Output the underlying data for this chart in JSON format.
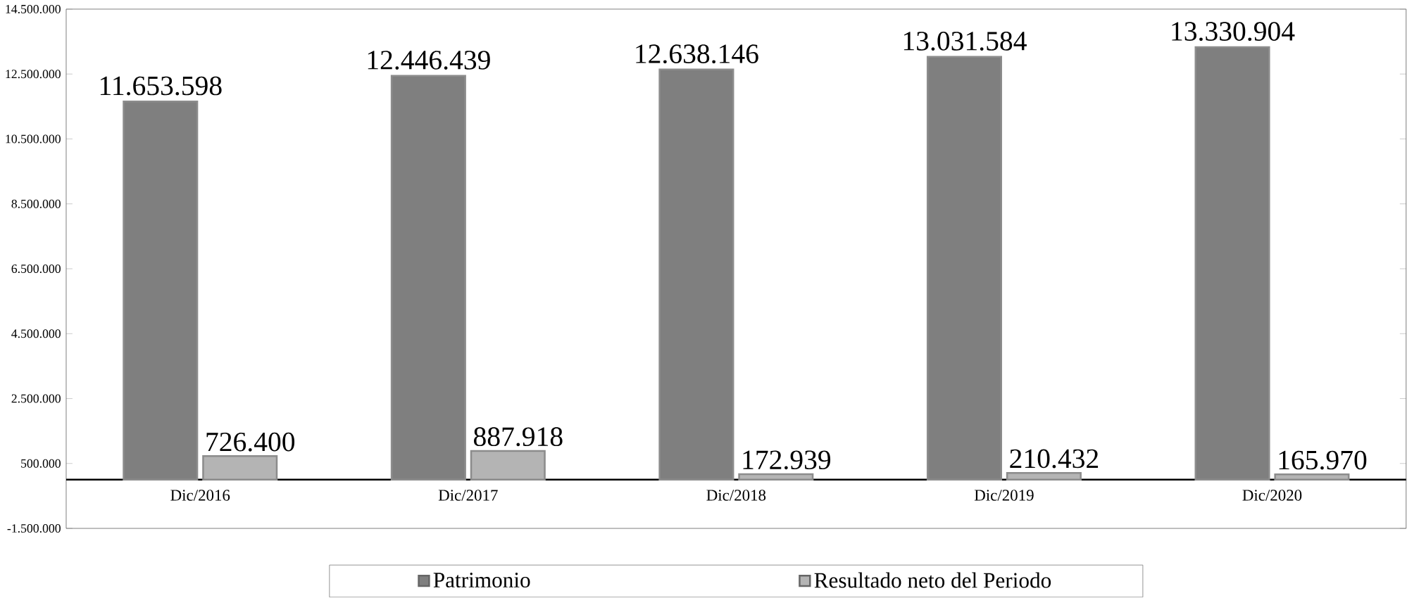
{
  "chart_data": {
    "type": "bar",
    "categories": [
      "Dic/2016",
      "Dic/2017",
      "Dic/2018",
      "Dic/2019",
      "Dic/2020"
    ],
    "series": [
      {
        "name": "Patrimonio",
        "color": "#7f7f7f",
        "values": [
          11653598,
          12446439,
          12638146,
          13031584,
          13330904
        ],
        "value_labels": [
          "11.653.598",
          "12.446.439",
          "12.638.146",
          "13.031.584",
          "13.330.904"
        ]
      },
      {
        "name": "Resultado neto del Periodo",
        "color": "#b4b4b4",
        "values": [
          726400,
          887918,
          172939,
          210432,
          165970
        ],
        "value_labels": [
          "726.400",
          "887.918",
          "172.939",
          "210.432",
          "165.970"
        ]
      }
    ],
    "ylim": [
      -1500000,
      14500000
    ],
    "yticks": [
      {
        "value": -1500000,
        "label": "-1.500.000"
      },
      {
        "value": 500000,
        "label": "500.000"
      },
      {
        "value": 2500000,
        "label": "2.500.000"
      },
      {
        "value": 4500000,
        "label": "4.500.000"
      },
      {
        "value": 6500000,
        "label": "6.500.000"
      },
      {
        "value": 8500000,
        "label": "8.500.000"
      },
      {
        "value": 10500000,
        "label": "10.500.000"
      },
      {
        "value": 12500000,
        "label": "12.500.000"
      },
      {
        "value": 14500000,
        "label": "14.500.000"
      }
    ],
    "legend": "bottom",
    "grid": false
  }
}
